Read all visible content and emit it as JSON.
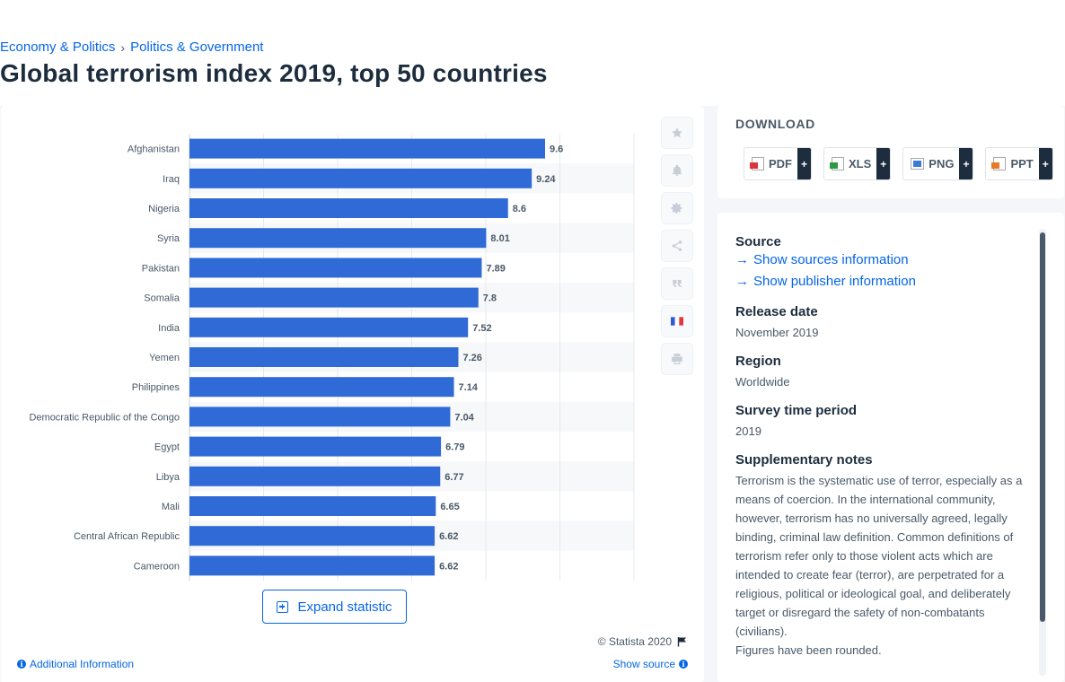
{
  "breadcrumb": {
    "item1": "Economy & Politics",
    "item2": "Politics & Government"
  },
  "page_title": "Global terrorism index 2019, top 50 countries",
  "chart_data": {
    "type": "bar",
    "orientation": "horizontal",
    "categories": [
      "Afghanistan",
      "Iraq",
      "Nigeria",
      "Syria",
      "Pakistan",
      "Somalia",
      "India",
      "Yemen",
      "Philippines",
      "Democratic Republic of the Congo",
      "Egypt",
      "Libya",
      "Mali",
      "Central African Republic",
      "Cameroon"
    ],
    "values": [
      9.6,
      9.24,
      8.6,
      8.01,
      7.89,
      7.8,
      7.52,
      7.26,
      7.14,
      7.04,
      6.79,
      6.77,
      6.65,
      6.62,
      6.62
    ],
    "data_labels": [
      "9.6",
      "9.24",
      "8.6",
      "8.01",
      "7.89",
      "7.8",
      "7.52",
      "7.26",
      "7.14",
      "7.04",
      "6.79",
      "6.77",
      "6.65",
      "6.62",
      "6.62"
    ],
    "xlim": [
      0,
      12
    ],
    "grid": true,
    "bar_color": "#2f6ad7"
  },
  "chart_actions": {
    "expand_label": "Expand statistic",
    "copyright": "© Statista 2020",
    "additional_info": "Additional Information",
    "show_source": "Show source"
  },
  "download": {
    "title": "DOWNLOAD",
    "buttons": [
      {
        "label": "PDF",
        "plus": "+"
      },
      {
        "label": "XLS",
        "plus": "+"
      },
      {
        "label": "PNG",
        "plus": "+"
      },
      {
        "label": "PPT",
        "plus": "+"
      }
    ]
  },
  "source_panel": {
    "source_label": "Source",
    "show_sources": "Show sources information",
    "show_publisher": "Show publisher information",
    "release_label": "Release date",
    "release_value": "November 2019",
    "region_label": "Region",
    "region_value": "Worldwide",
    "survey_label": "Survey time period",
    "survey_value": "2019",
    "notes_label": "Supplementary notes",
    "notes_value": "Terrorism is the systematic use of terror, especially as a means of coercion. In the international community, however, terrorism has no universally agreed, legally binding, criminal law definition. Common definitions of terrorism refer only to those violent acts which are intended to create fear (terror), are perpetrated for a religious, political or ideological goal, and deliberately target or disregard the safety of non-combatants (civilians).",
    "notes_value2": "Figures have been rounded."
  }
}
